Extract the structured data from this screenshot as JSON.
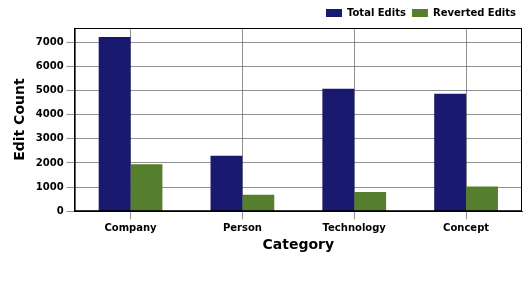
{
  "chart_data": {
    "type": "bar",
    "x_label": "Category",
    "y_label": "Edit Count",
    "categories": [
      "Company",
      "Person",
      "Technology",
      "Concept"
    ],
    "series": [
      {
        "name": "Total Edits",
        "color": "#191970",
        "values": [
          7230,
          2300,
          5080,
          4870
        ]
      },
      {
        "name": "Reverted Edits",
        "color": "#557f2d",
        "values": [
          1950,
          680,
          800,
          1020
        ]
      }
    ],
    "ylim": [
      0,
      7600
    ],
    "yticks": [
      0,
      1000,
      2000,
      3000,
      4000,
      5000,
      6000,
      7000
    ],
    "grid": true,
    "legend": "upper right"
  }
}
